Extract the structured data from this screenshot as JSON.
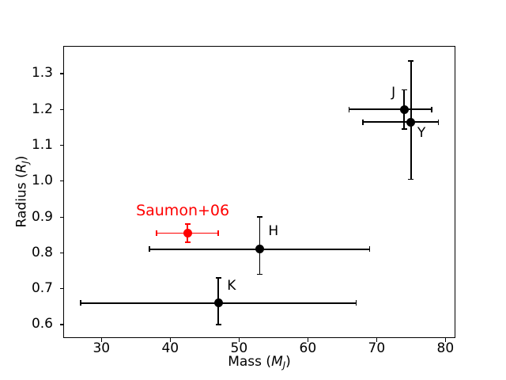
{
  "chart_data": {
    "type": "scatter",
    "title": "",
    "xlabel": {
      "pre": "Mass (",
      "var": "M",
      "sub": "J",
      "post": ")"
    },
    "ylabel": {
      "pre": "Radius (",
      "var": "R",
      "sub": "J",
      "post": ")"
    },
    "xlim": [
      24.45,
      81.45
    ],
    "ylim": [
      0.562,
      1.378
    ],
    "xticks": [
      30,
      40,
      50,
      60,
      70,
      80
    ],
    "yticks": [
      0.6,
      0.7,
      0.8,
      0.9,
      1.0,
      1.1,
      1.2,
      1.3
    ],
    "grid": false,
    "legend_position": "none",
    "background_color": "#ffffff",
    "axis_color": "#000000",
    "accent_color": "#ff0000",
    "points": [
      {
        "id": "saumon06",
        "label": "Saumon+06",
        "x": 42.5,
        "y": 0.855,
        "xerr_minus": 4.5,
        "xerr_plus": 4.5,
        "yerr_minus": 0.025,
        "yerr_plus": 0.025,
        "color": "#ff0000",
        "label_color": "#ff0000",
        "label_size": 19,
        "label_offset": [
          -65,
          -37
        ]
      },
      {
        "id": "K",
        "label": "K",
        "x": 47,
        "y": 0.66,
        "xerr_minus": 20,
        "xerr_plus": 20,
        "yerr_minus": 0.06,
        "yerr_plus": 0.07,
        "color": "#000000",
        "label_color": "#000000",
        "label_size": 17,
        "label_offset": [
          11,
          -30
        ]
      },
      {
        "id": "H",
        "label": "H",
        "x": 53,
        "y": 0.81,
        "xerr_minus": 16,
        "xerr_plus": 16,
        "yerr_minus": 0.07,
        "yerr_plus": 0.09,
        "color": "#000000",
        "label_color": "#000000",
        "label_size": 17,
        "label_offset": [
          11,
          -31
        ]
      },
      {
        "id": "J",
        "label": "J",
        "x": 74,
        "y": 1.2,
        "xerr_minus": 8,
        "xerr_plus": 4,
        "yerr_minus": 0.055,
        "yerr_plus": 0.055,
        "color": "#000000",
        "label_color": "#000000",
        "label_size": 17,
        "label_offset": [
          -16,
          -29
        ]
      },
      {
        "id": "Y",
        "label": "Y",
        "x": 75,
        "y": 1.165,
        "xerr_minus": 7,
        "xerr_plus": 4,
        "yerr_minus": 0.16,
        "yerr_plus": 0.17,
        "color": "#000000",
        "label_color": "#000000",
        "label_size": 17,
        "label_offset": [
          8,
          6
        ]
      }
    ]
  }
}
